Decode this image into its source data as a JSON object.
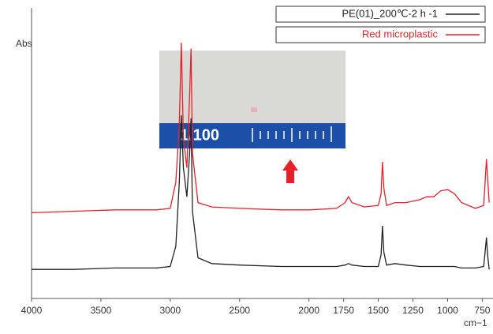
{
  "chart_data": {
    "type": "line",
    "y_label": "Abs",
    "x_label": "cm−1",
    "inset_text": "1/100",
    "x": [
      4000,
      3700,
      3400,
      3100,
      3000,
      2960,
      2935,
      2920,
      2905,
      2880,
      2860,
      2850,
      2840,
      2800,
      2700,
      2500,
      2200,
      2000,
      1800,
      1740,
      1715,
      1690,
      1600,
      1500,
      1480,
      1470,
      1460,
      1440,
      1380,
      1300,
      1200,
      1150,
      1100,
      1050,
      1000,
      950,
      900,
      800,
      740,
      730,
      720,
      710,
      700
    ],
    "series": [
      {
        "name": "PE(01)_200℃-2 h -1",
        "color": "#222222",
        "values": [
          10,
          10,
          10.5,
          10.5,
          11,
          18,
          40,
          63,
          45,
          35,
          50,
          62,
          30,
          14,
          12,
          11.5,
          11,
          11,
          11,
          11.5,
          12,
          11.5,
          11,
          11,
          15,
          25,
          16,
          11.5,
          12,
          11.5,
          11,
          11,
          11,
          11,
          11,
          11,
          10.5,
          10.5,
          11,
          16,
          21,
          14,
          10
        ]
      },
      {
        "name": "Red microplastic",
        "color": "#e8202a",
        "values": [
          29.5,
          30,
          30.5,
          30.5,
          31,
          40,
          60,
          88,
          55,
          45,
          70,
          86,
          50,
          33,
          31.5,
          31,
          30.5,
          30.5,
          31,
          33,
          35,
          33,
          31.5,
          32,
          36,
          47,
          38,
          32,
          33,
          33,
          34,
          35,
          35,
          37,
          37.5,
          36,
          33,
          31,
          32,
          40,
          48,
          40,
          33
        ]
      }
    ],
    "xlim": [
      4000,
      690
    ],
    "xticks": [
      4000,
      3500,
      3000,
      2500,
      2000,
      1750,
      1500,
      1250,
      1000,
      750
    ],
    "ylim": [
      0,
      100
    ],
    "legend": "upper right"
  }
}
